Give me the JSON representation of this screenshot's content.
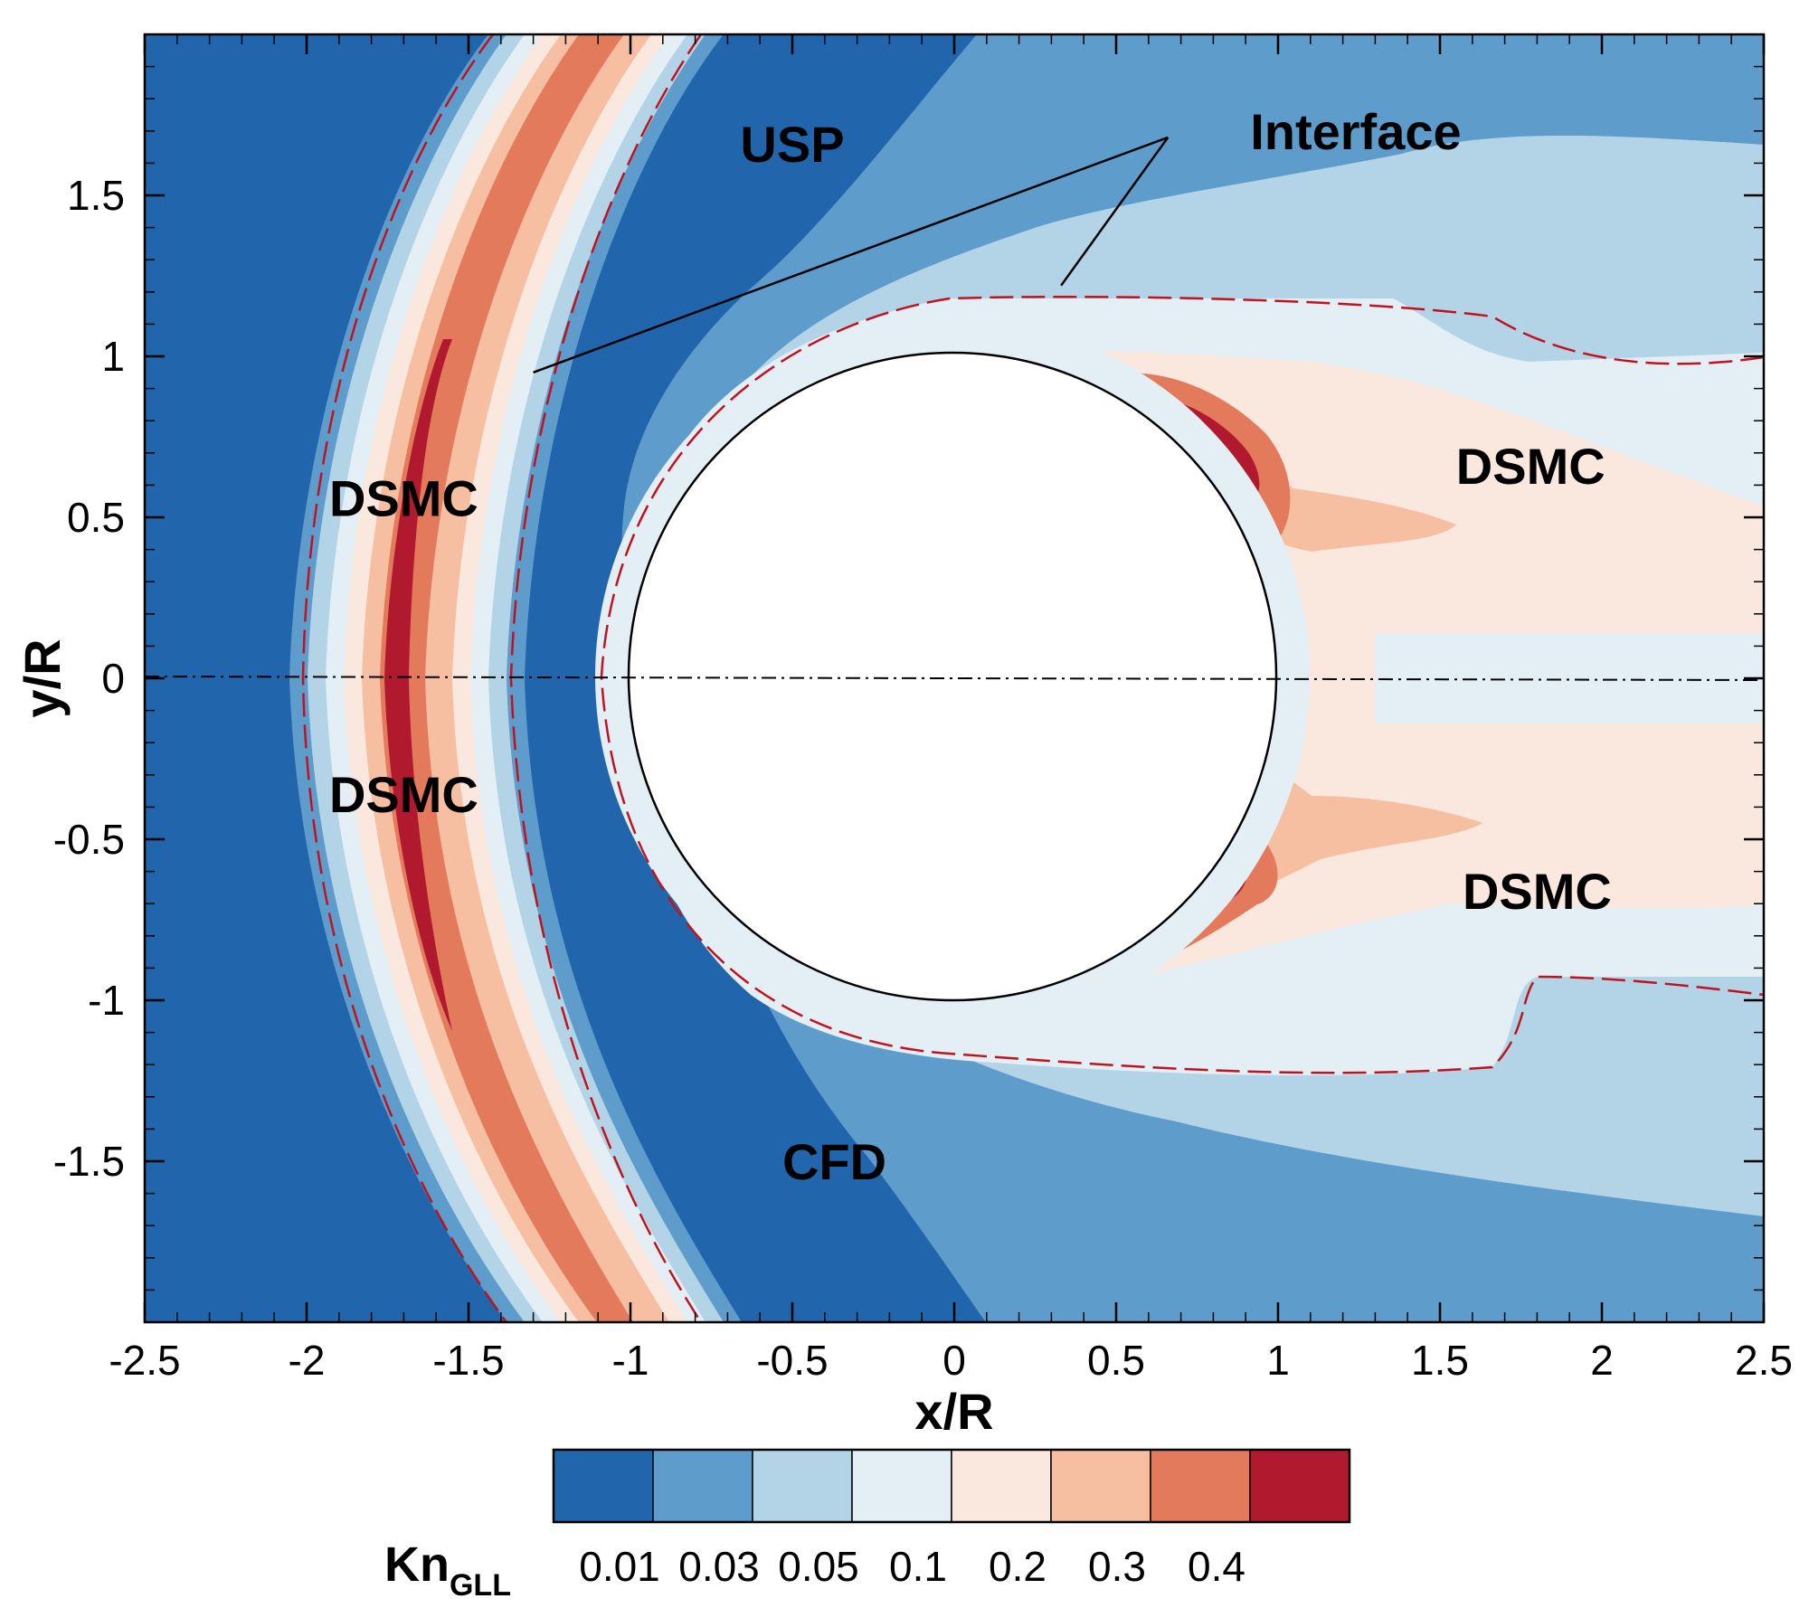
{
  "chart_data": {
    "type": "contour",
    "title": "",
    "xlabel": "x/R",
    "ylabel": "y/R",
    "xlim": [
      -2.5,
      2.5
    ],
    "ylim": [
      -2.0,
      2.0
    ],
    "xticks": [
      -2.5,
      -2,
      -1.5,
      -1,
      -0.5,
      0,
      0.5,
      1,
      1.5,
      2,
      2.5
    ],
    "xtick_labels": [
      "-2.5",
      "-2",
      "-1.5",
      "-1",
      "-0.5",
      "0",
      "0.5",
      "1",
      "1.5",
      "2",
      "2.5"
    ],
    "yticks": [
      -1.5,
      -1,
      -0.5,
      0,
      0.5,
      1,
      1.5
    ],
    "ytick_labels": [
      "-1.5",
      "-1",
      "-0.5",
      "0",
      "0.5",
      "1",
      "1.5"
    ],
    "cylinder": {
      "center": [
        0,
        0
      ],
      "radius": 1
    },
    "symmetry_line_y": 0,
    "colorbar": {
      "label_main": "Kn",
      "label_sub": "GLL",
      "levels": [
        "0.01",
        "0.03",
        "0.05",
        "0.1",
        "0.2",
        "0.3",
        "0.4"
      ],
      "colors": [
        "#2166ac",
        "#5e9ccb",
        "#b3d4e6",
        "#e4eef5",
        "#fae8df",
        "#f6bfa2",
        "#e47a5c",
        "#b11a2e"
      ]
    },
    "annotations": [
      {
        "text": "USP",
        "x": -0.5,
        "y": 1.66
      },
      {
        "text": "Interface",
        "x": 1.24,
        "y": 1.7
      },
      {
        "text": "DSMC",
        "x": -1.7,
        "y": 0.56
      },
      {
        "text": "DSMC",
        "x": 1.78,
        "y": 0.66
      },
      {
        "text": "DSMC",
        "x": -1.7,
        "y": -0.36
      },
      {
        "text": "DSMC",
        "x": 1.8,
        "y": -0.66
      },
      {
        "text": "CFD",
        "x": -0.37,
        "y": -1.5
      }
    ],
    "interface_pointers": [
      {
        "from": [
          0.66,
          1.68
        ],
        "to": [
          -1.3,
          0.95
        ]
      },
      {
        "from": [
          0.66,
          1.68
        ],
        "to": [
          0.33,
          1.22
        ]
      }
    ]
  }
}
